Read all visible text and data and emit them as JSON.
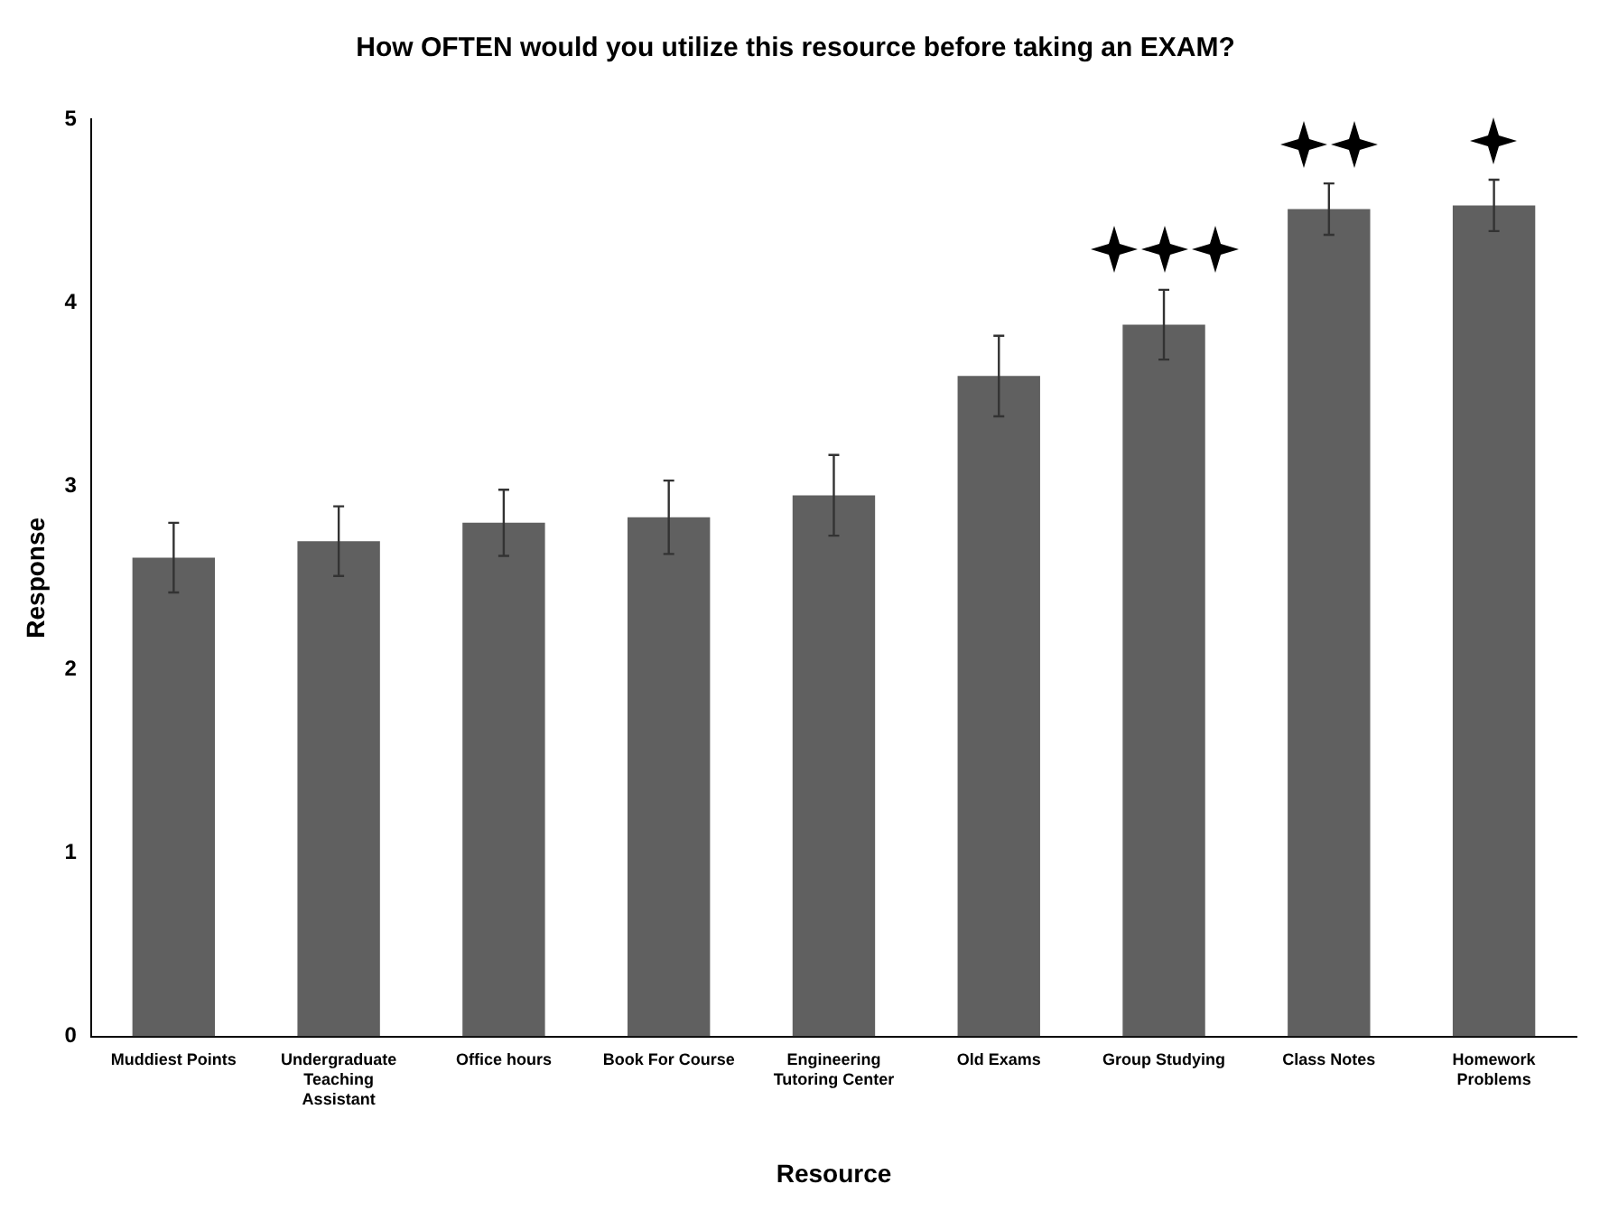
{
  "chart_data": {
    "type": "bar",
    "title": "How OFTEN would you utilize this resource before taking an EXAM?",
    "xlabel": "Resource",
    "ylabel": "Response",
    "categories": [
      "Muddiest Points",
      "Undergraduate Teaching Assistant",
      "Office hours",
      "Book For Course",
      "Engineering Tutoring Center",
      "Old Exams",
      "Group Studying",
      "Class Notes",
      "Homework Problems"
    ],
    "values": [
      2.61,
      2.7,
      2.8,
      2.83,
      2.95,
      3.6,
      3.88,
      4.51,
      4.53
    ],
    "errors": [
      0.19,
      0.19,
      0.18,
      0.2,
      0.22,
      0.22,
      0.19,
      0.14,
      0.14
    ],
    "color": "#606060",
    "ylim": [
      0,
      5
    ],
    "yticks": [
      0,
      1,
      2,
      3,
      4,
      5
    ],
    "grid": false,
    "legend": false
  }
}
